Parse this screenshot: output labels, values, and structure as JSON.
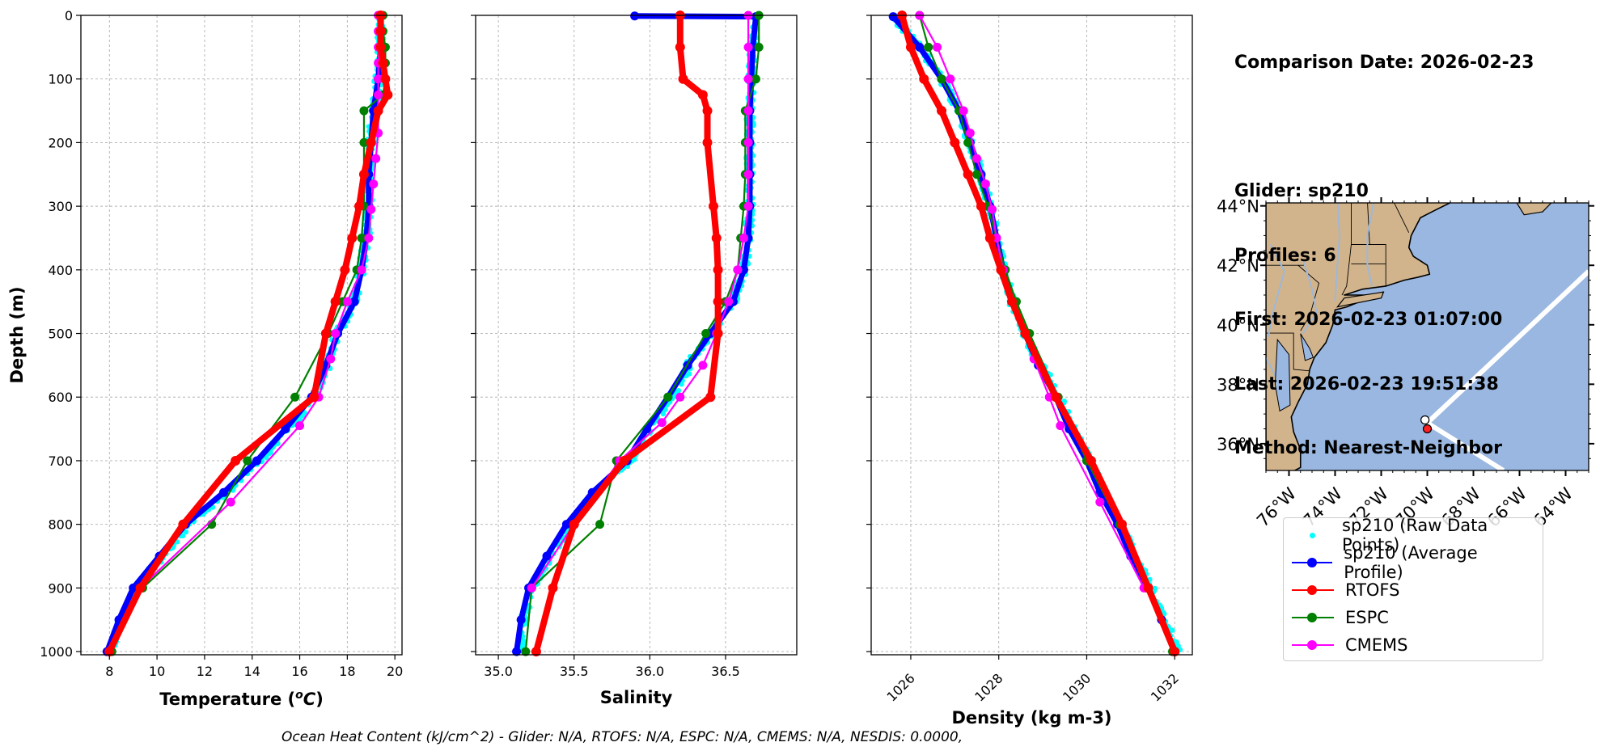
{
  "info": {
    "comparison_date": "Comparison Date: 2026-02-23",
    "glider": "Glider: sp210",
    "profiles": "Profiles: 6",
    "first": "First: 2026-02-23 01:07:00",
    "last": "Last: 2026-02-23 19:51:38",
    "method": "Method: Nearest-Neighbor"
  },
  "footer": "Ocean Heat Content (kJ/cm^2) - Glider: N/A,  RTOFS: N/A,  ESPC: N/A,  CMEMS: N/A,  NESDIS: 0.0000,",
  "legend": [
    {
      "label": "sp210 (Raw Data Points)",
      "color": "#00ffff",
      "style": "dot"
    },
    {
      "label": "sp210 (Average Profile)",
      "color": "#0000ff",
      "style": "line"
    },
    {
      "label": "RTOFS",
      "color": "#ff0000",
      "style": "line"
    },
    {
      "label": "ESPC",
      "color": "#008000",
      "style": "line"
    },
    {
      "label": "CMEMS",
      "color": "#ff00ff",
      "style": "line"
    }
  ],
  "chart_data": [
    {
      "type": "line",
      "xlabel": "Temperature (°C)",
      "ylabel": "Depth (m)",
      "xlim": [
        6.8,
        20.3
      ],
      "ylim": [
        1005,
        0
      ],
      "xticks": [
        8,
        10,
        12,
        14,
        16,
        18,
        20
      ],
      "yticks": [
        0,
        100,
        200,
        300,
        400,
        500,
        600,
        700,
        800,
        900,
        1000
      ],
      "grid": true,
      "series": [
        {
          "name": "sp210 (Average Profile)",
          "color": "#0000ff",
          "depth": [
            0,
            50,
            100,
            150,
            200,
            250,
            300,
            350,
            400,
            450,
            500,
            550,
            600,
            650,
            700,
            750,
            800,
            850,
            900,
            950,
            1000
          ],
          "values": [
            19.4,
            19.4,
            19.3,
            19.1,
            19.0,
            18.9,
            18.9,
            18.8,
            18.6,
            18.3,
            17.6,
            17.1,
            16.5,
            15.4,
            14.2,
            12.8,
            11.2,
            10.1,
            9.0,
            8.4,
            7.9
          ]
        },
        {
          "name": "RTOFS",
          "color": "#ff0000",
          "depth": [
            0,
            25,
            50,
            75,
            100,
            125,
            150,
            200,
            250,
            300,
            350,
            400,
            450,
            500,
            600,
            700,
            800,
            900,
            1000
          ],
          "values": [
            19.4,
            19.4,
            19.4,
            19.5,
            19.6,
            19.7,
            19.3,
            19.0,
            18.7,
            18.5,
            18.2,
            17.9,
            17.5,
            17.1,
            16.6,
            13.3,
            11.1,
            9.3,
            8.0
          ]
        },
        {
          "name": "ESPC",
          "color": "#008000",
          "depth": [
            0,
            25,
            50,
            75,
            100,
            125,
            150,
            200,
            250,
            300,
            350,
            400,
            450,
            500,
            600,
            700,
            800,
            900,
            1000
          ],
          "values": [
            19.5,
            19.5,
            19.6,
            19.6,
            19.6,
            19.5,
            18.7,
            18.7,
            18.7,
            18.7,
            18.6,
            18.4,
            17.8,
            17.2,
            15.8,
            13.8,
            12.3,
            9.4,
            8.1
          ]
        },
        {
          "name": "CMEMS",
          "color": "#ff00ff",
          "depth": [
            0,
            25,
            50,
            75,
            100,
            125,
            150,
            185,
            225,
            265,
            305,
            350,
            400,
            450,
            500,
            540,
            600,
            645,
            765,
            900,
            1000
          ],
          "values": [
            19.3,
            19.3,
            19.3,
            19.3,
            19.3,
            19.3,
            19.3,
            19.3,
            19.2,
            19.1,
            19.0,
            18.9,
            18.6,
            18.0,
            17.5,
            17.3,
            16.8,
            16.0,
            13.1,
            9.3,
            8.0
          ]
        }
      ]
    },
    {
      "type": "line",
      "xlabel": "Salinity",
      "xlim": [
        34.85,
        36.97
      ],
      "ylim": [
        1005,
        0
      ],
      "xticks": [
        35.0,
        35.5,
        36.0,
        36.5
      ],
      "xtick_labels": [
        "35.0",
        "35.5",
        "36.0",
        "36.5"
      ],
      "yticks": [
        0,
        100,
        200,
        300,
        400,
        500,
        600,
        700,
        800,
        900,
        1000
      ],
      "grid": true,
      "series": [
        {
          "name": "sp210 (Average Profile)",
          "color": "#0000ff",
          "depth": [
            1,
            2,
            50,
            100,
            150,
            200,
            250,
            300,
            350,
            400,
            450,
            500,
            550,
            600,
            650,
            700,
            750,
            800,
            850,
            900,
            950,
            1000
          ],
          "values": [
            35.9,
            36.7,
            36.68,
            36.67,
            36.66,
            36.66,
            36.66,
            36.66,
            36.65,
            36.62,
            36.55,
            36.4,
            36.25,
            36.12,
            35.98,
            35.85,
            35.62,
            35.45,
            35.32,
            35.2,
            35.15,
            35.12
          ]
        },
        {
          "name": "RTOFS",
          "color": "#ff0000",
          "depth": [
            0,
            50,
            100,
            125,
            150,
            200,
            300,
            350,
            400,
            450,
            500,
            600,
            700,
            800,
            900,
            1000
          ],
          "values": [
            36.2,
            36.2,
            36.22,
            36.35,
            36.38,
            36.38,
            36.42,
            36.44,
            36.45,
            36.45,
            36.45,
            36.4,
            35.83,
            35.5,
            35.36,
            35.25
          ]
        },
        {
          "name": "ESPC",
          "color": "#008000",
          "depth": [
            0,
            50,
            100,
            150,
            200,
            250,
            300,
            350,
            400,
            450,
            500,
            600,
            700,
            800,
            900,
            1000
          ],
          "values": [
            36.72,
            36.72,
            36.7,
            36.63,
            36.63,
            36.63,
            36.62,
            36.6,
            36.58,
            36.5,
            36.37,
            36.12,
            35.78,
            35.67,
            35.22,
            35.18
          ]
        },
        {
          "name": "CMEMS",
          "color": "#ff00ff",
          "depth": [
            0,
            50,
            100,
            150,
            200,
            250,
            300,
            350,
            400,
            450,
            500,
            550,
            600,
            640,
            700,
            800,
            900
          ],
          "values": [
            36.65,
            36.65,
            36.65,
            36.65,
            36.65,
            36.65,
            36.65,
            36.62,
            36.58,
            36.52,
            36.44,
            36.35,
            36.2,
            36.08,
            35.8,
            35.5,
            35.22
          ]
        }
      ]
    },
    {
      "type": "line",
      "xlabel": "Density (kg m-3)",
      "xlim": [
        1025.1,
        1032.4
      ],
      "ylim": [
        1005,
        0
      ],
      "xticks": [
        1026,
        1028,
        1030,
        1032
      ],
      "yticks": [
        0,
        100,
        200,
        300,
        400,
        500,
        600,
        700,
        800,
        900,
        1000
      ],
      "grid": true,
      "series": [
        {
          "name": "sp210 (Average Profile)",
          "color": "#0000ff",
          "depth": [
            2,
            50,
            100,
            150,
            200,
            250,
            300,
            350,
            400,
            450,
            500,
            550,
            600,
            650,
            700,
            750,
            800,
            850,
            900,
            950,
            1000
          ],
          "values": [
            1025.6,
            1026.2,
            1026.7,
            1027.1,
            1027.35,
            1027.6,
            1027.8,
            1027.95,
            1028.1,
            1028.3,
            1028.6,
            1028.9,
            1029.3,
            1029.6,
            1030.0,
            1030.3,
            1030.7,
            1031.0,
            1031.4,
            1031.7,
            1032.0
          ]
        },
        {
          "name": "RTOFS",
          "color": "#ff0000",
          "depth": [
            0,
            50,
            100,
            150,
            200,
            250,
            300,
            350,
            400,
            450,
            500,
            600,
            700,
            800,
            900,
            1000
          ],
          "values": [
            1025.8,
            1026.0,
            1026.3,
            1026.7,
            1027.0,
            1027.3,
            1027.6,
            1027.8,
            1028.05,
            1028.3,
            1028.6,
            1029.3,
            1030.1,
            1030.8,
            1031.4,
            1032.0
          ]
        },
        {
          "name": "ESPC",
          "color": "#008000",
          "depth": [
            0,
            50,
            100,
            150,
            200,
            250,
            300,
            350,
            400,
            450,
            500,
            600,
            700,
            800,
            900,
            1000
          ],
          "values": [
            1026.2,
            1026.4,
            1026.7,
            1027.1,
            1027.3,
            1027.5,
            1027.75,
            1027.95,
            1028.15,
            1028.4,
            1028.7,
            1029.35,
            1030.0,
            1030.75,
            1031.35,
            1031.95
          ]
        },
        {
          "name": "CMEMS",
          "color": "#ff00ff",
          "depth": [
            0,
            50,
            100,
            150,
            185,
            225,
            265,
            305,
            350,
            400,
            450,
            500,
            540,
            600,
            645,
            765,
            900
          ],
          "values": [
            1026.2,
            1026.6,
            1026.9,
            1027.2,
            1027.35,
            1027.5,
            1027.7,
            1027.85,
            1027.95,
            1028.1,
            1028.3,
            1028.6,
            1028.8,
            1029.15,
            1029.4,
            1030.3,
            1031.3
          ]
        }
      ]
    },
    {
      "type": "map",
      "lon_ticks": [
        "76°W",
        "74°W",
        "72°W",
        "70°W",
        "68°W",
        "66°W",
        "64°W"
      ],
      "lat_ticks": [
        "44°N",
        "42°N",
        "40°N",
        "38°N",
        "36°N"
      ],
      "lon_values": [
        -76,
        -74,
        -72,
        -70,
        -68,
        -66,
        -64
      ],
      "lat_values": [
        44,
        42,
        40,
        38,
        36
      ],
      "lon_range": [
        -77,
        -63
      ],
      "lat_range": [
        35.1,
        44.1
      ],
      "track": [
        [
          -63.0,
          41.8
        ],
        [
          -70.0,
          36.7
        ],
        [
          -66.7,
          35.1
        ]
      ],
      "glider_marker": [
        -70.1,
        36.8
      ],
      "model_marker": [
        -70.0,
        36.5
      ],
      "land_color": "#d2b48c",
      "ocean_color": "#99b7e0",
      "track_color": "#ffffff"
    }
  ]
}
